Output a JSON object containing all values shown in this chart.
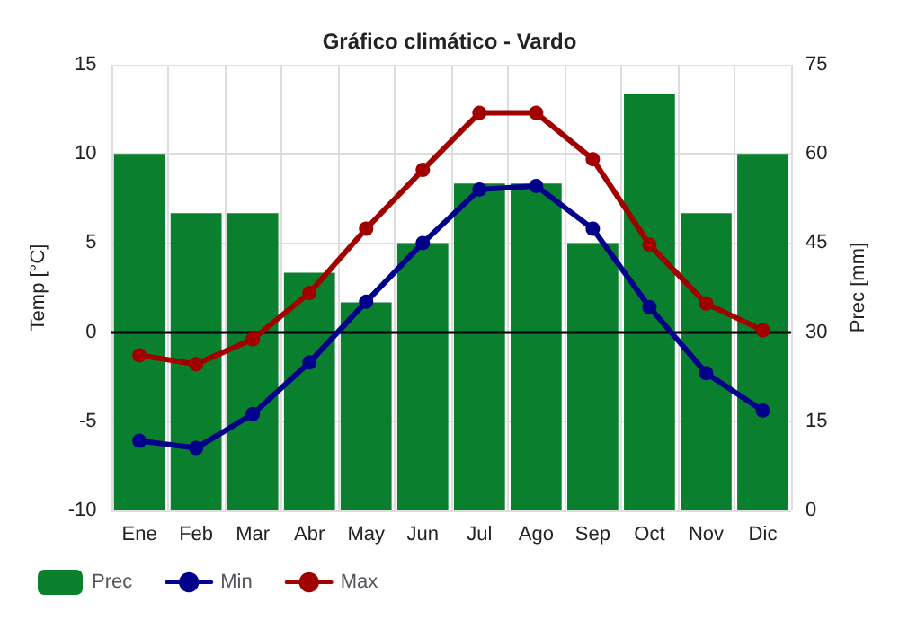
{
  "chart_data": {
    "type": "bar",
    "title": "Gráfico climático - Vardo",
    "ylabel": "Temp [°C]",
    "y2label": "Prec [mm]",
    "categories": [
      "Ene",
      "Feb",
      "Mar",
      "Abr",
      "May",
      "Jun",
      "Jul",
      "Ago",
      "Sep",
      "Oct",
      "Nov",
      "Dic"
    ],
    "series": [
      {
        "name": "Prec",
        "axis": "y2",
        "color": "#0a7f2e",
        "values": [
          60,
          50,
          50,
          40,
          35,
          45,
          55,
          55,
          45,
          70,
          50,
          60
        ]
      },
      {
        "name": "Min",
        "type": "line",
        "color": "#00008b",
        "values": [
          -6.1,
          -6.5,
          -4.6,
          -1.7,
          1.7,
          5.0,
          8.0,
          8.2,
          5.8,
          1.4,
          -2.3,
          -4.4
        ]
      },
      {
        "name": "Max",
        "type": "line",
        "color": "#a00000",
        "values": [
          -1.3,
          -1.8,
          -0.4,
          2.2,
          5.8,
          9.1,
          12.3,
          12.3,
          9.7,
          4.9,
          1.6,
          0.1
        ]
      }
    ],
    "ylim": [
      -10,
      15
    ],
    "yticks": [
      -10,
      -5,
      0,
      5,
      10,
      15
    ],
    "y2lim": [
      0,
      75
    ],
    "y2ticks": [
      0,
      15,
      30,
      45,
      60,
      75
    ],
    "ref_lines": [
      {
        "axis": "y",
        "value": 0,
        "color": "#000000"
      }
    ],
    "grid": true,
    "legend": "bottom left",
    "marker": "circle",
    "line_style": "solid"
  }
}
